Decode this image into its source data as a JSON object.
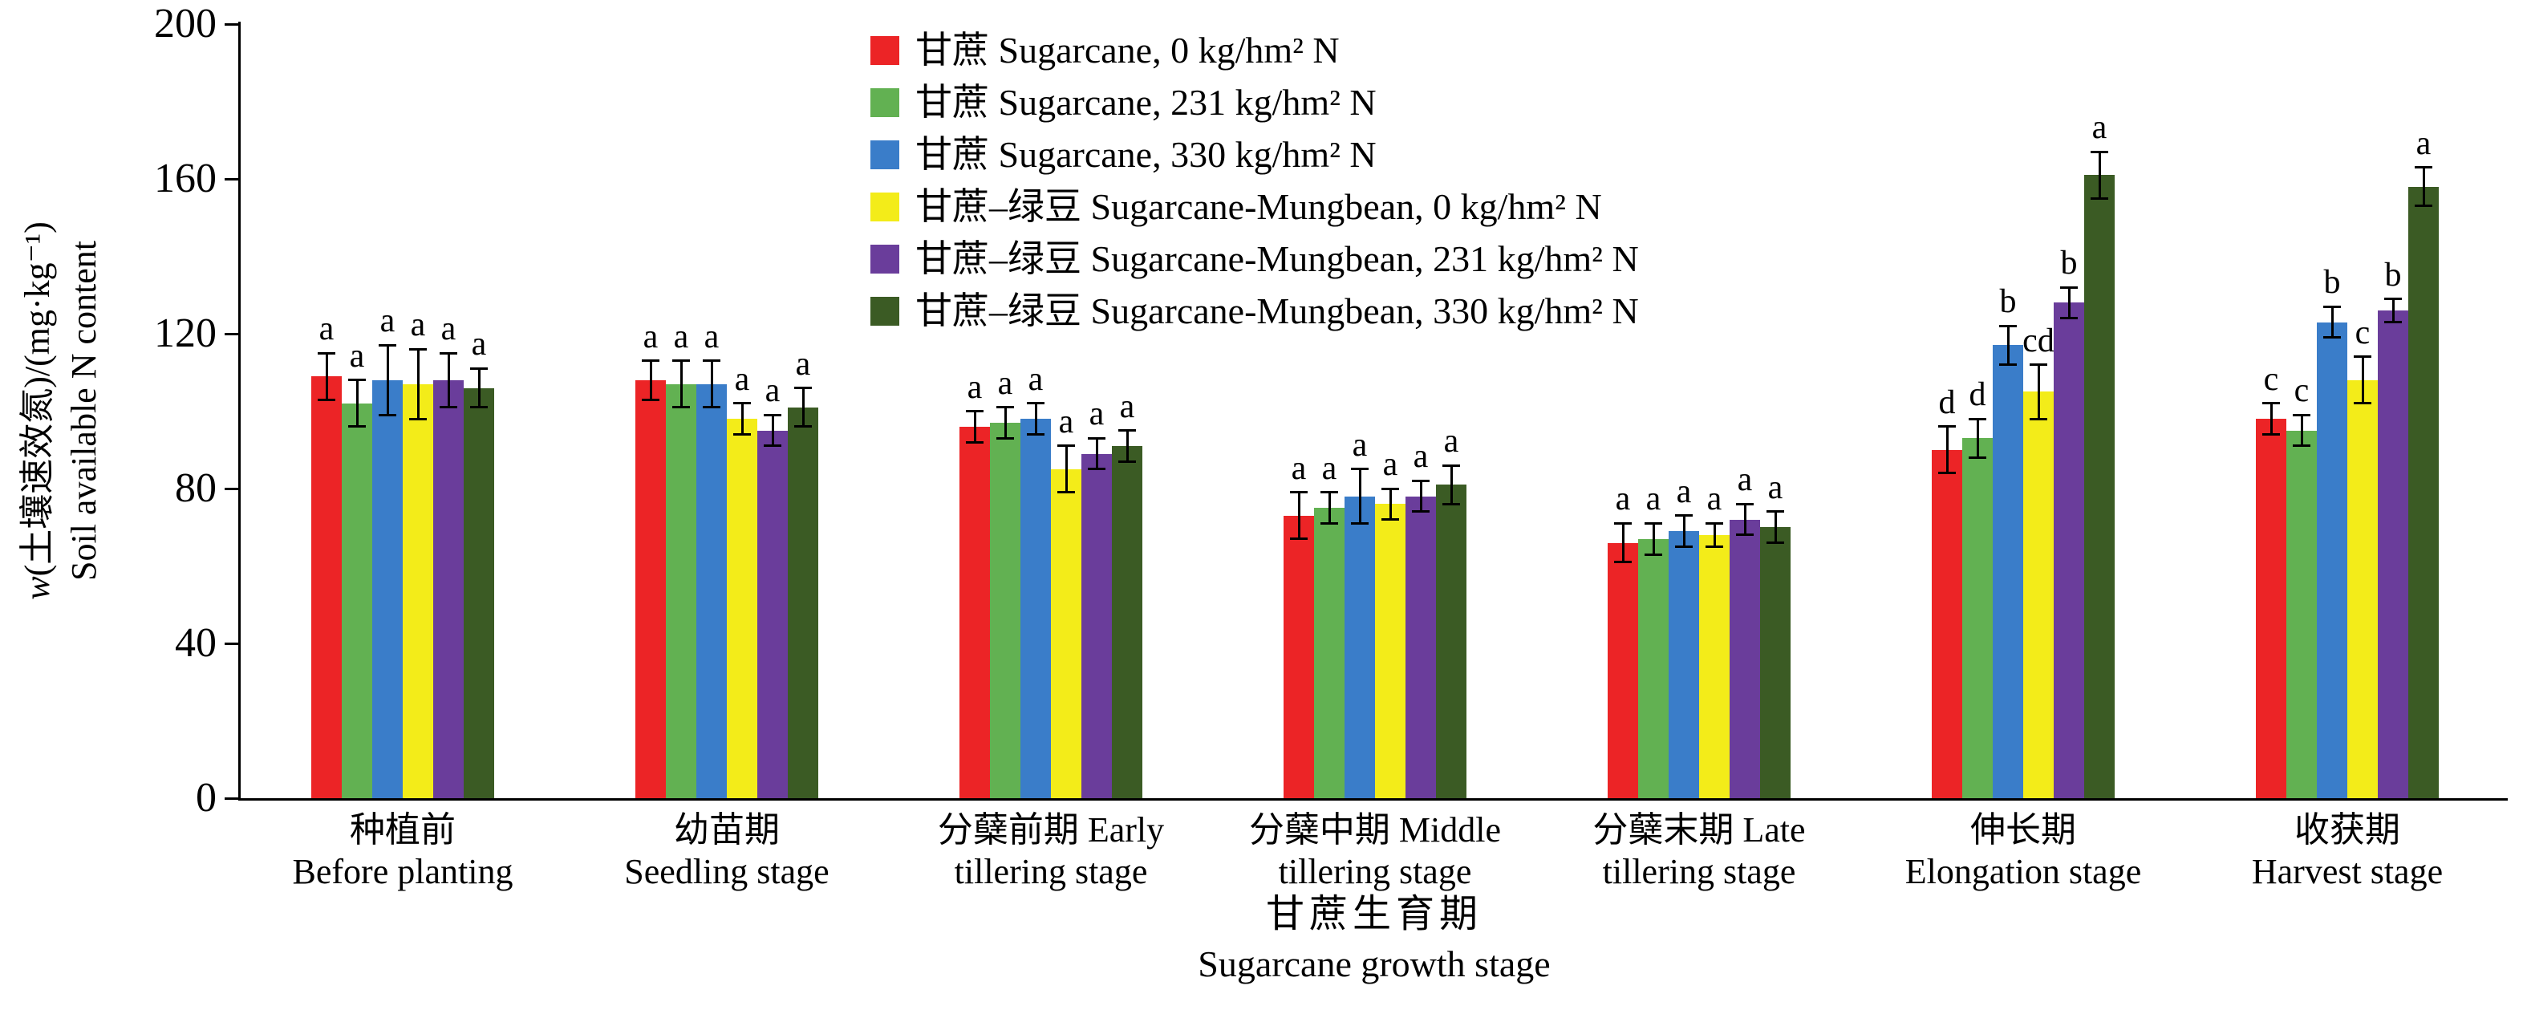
{
  "chart_data": {
    "type": "bar",
    "title": "",
    "ylabel_w": "w",
    "ylabel_cn_rest": "(土壤速效氮)/(mg·kg⁻¹)",
    "ylabel_en": "Soil available N content",
    "xlabel_cn": "甘蔗生育期",
    "xlabel_en": "Sugarcane growth stage",
    "ylim": [
      0,
      200
    ],
    "yticks": [
      0,
      40,
      80,
      120,
      160,
      200
    ],
    "grid": false,
    "legend_position": "top-center",
    "axis_color": "#000000",
    "background": "#ffffff",
    "categories": [
      {
        "line1": "种植前",
        "line2": "Before planting"
      },
      {
        "line1": "幼苗期",
        "line2": "Seedling stage"
      },
      {
        "line1": "分蘖前期 Early",
        "line2": "tillering stage"
      },
      {
        "line1": "分蘖中期 Middle",
        "line2": "tillering stage"
      },
      {
        "line1": "分蘖末期 Late",
        "line2": "tillering stage"
      },
      {
        "line1": "伸长期",
        "line2": "Elongation stage"
      },
      {
        "line1": "收获期",
        "line2": "Harvest stage"
      }
    ],
    "series": [
      {
        "name": "甘蔗 Sugarcane, 0 kg/hm² N",
        "color": "#ec2426",
        "values": [
          109,
          108,
          96,
          73,
          66,
          90,
          98
        ],
        "errors": [
          6,
          5,
          4,
          6,
          5,
          6,
          4
        ],
        "letters": [
          "a",
          "a",
          "a",
          "a",
          "a",
          "d",
          "c"
        ]
      },
      {
        "name": "甘蔗 Sugarcane, 231 kg/hm² N",
        "color": "#62b152",
        "values": [
          102,
          107,
          97,
          75,
          67,
          93,
          95
        ],
        "errors": [
          6,
          6,
          4,
          4,
          4,
          5,
          4
        ],
        "letters": [
          "a",
          "a",
          "a",
          "a",
          "a",
          "d",
          "c"
        ]
      },
      {
        "name": "甘蔗 Sugarcane, 330 kg/hm² N",
        "color": "#3a7dc9",
        "values": [
          108,
          107,
          98,
          78,
          69,
          117,
          123
        ],
        "errors": [
          9,
          6,
          4,
          7,
          4,
          5,
          4
        ],
        "letters": [
          "a",
          "a",
          "a",
          "a",
          "a",
          "b",
          "b"
        ]
      },
      {
        "name": "甘蔗–绿豆 Sugarcane-Mungbean, 0 kg/hm² N",
        "color": "#f3ec19",
        "values": [
          107,
          98,
          85,
          76,
          68,
          105,
          108
        ],
        "errors": [
          9,
          4,
          6,
          4,
          3,
          7,
          6
        ],
        "letters": [
          "a",
          "a",
          "a",
          "a",
          "a",
          "cd",
          "c"
        ]
      },
      {
        "name": "甘蔗–绿豆 Sugarcane-Mungbean, 231 kg/hm² N",
        "color": "#6a3d9b",
        "values": [
          108,
          95,
          89,
          78,
          72,
          128,
          126
        ],
        "errors": [
          7,
          4,
          4,
          4,
          4,
          4,
          3
        ],
        "letters": [
          "a",
          "a",
          "a",
          "a",
          "a",
          "b",
          "b"
        ]
      },
      {
        "name": "甘蔗–绿豆 Sugarcane-Mungbean, 330 kg/hm² N",
        "color": "#3b5b24",
        "values": [
          106,
          101,
          91,
          81,
          70,
          161,
          158
        ],
        "errors": [
          5,
          5,
          4,
          5,
          4,
          6,
          5
        ],
        "letters": [
          "a",
          "a",
          "a",
          "a",
          "a",
          "a",
          "a"
        ]
      }
    ]
  }
}
